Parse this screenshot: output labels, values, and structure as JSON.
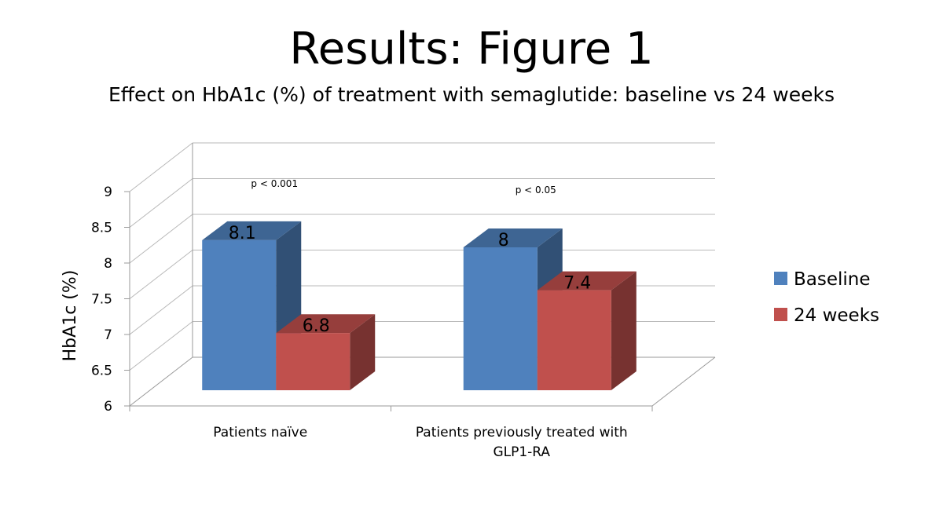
{
  "slide": {
    "title": "Results: Figure 1",
    "subtitle": "Effect on HbA1c (%)  of treatment with semaglutide: baseline vs 24 weeks"
  },
  "chart_data": {
    "type": "bar",
    "style": "3d-clustered-column",
    "categories": [
      [
        "Patients naïve"
      ],
      [
        "Patients previously treated with",
        "GLP1-RA"
      ]
    ],
    "series": [
      {
        "name": "Baseline",
        "values": [
          8.1,
          8
        ],
        "color": "#4F81BD"
      },
      {
        "name": "24 weeks",
        "values": [
          6.8,
          7.4
        ],
        "color": "#C0504D"
      }
    ],
    "data_labels": [
      [
        "8.1",
        "8"
      ],
      [
        "6.8",
        "7.4"
      ]
    ],
    "annotations": [
      "p < 0.001",
      "p < 0.05"
    ],
    "ylabel": "HbA1c (%)",
    "ylim": [
      6,
      9
    ],
    "yticks": [
      "6",
      "6.5",
      "7",
      "7.5",
      "8",
      "8.5",
      "9"
    ],
    "grid": true,
    "legend": "right"
  }
}
